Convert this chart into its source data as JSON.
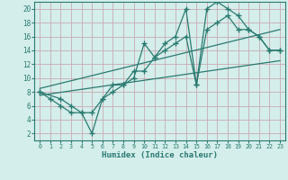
{
  "bg_color": "#d4eeeb",
  "grid_color": "#c8aab4",
  "line_color": "#2a7a70",
  "xlabel": "Humidex (Indice chaleur)",
  "xlim": [
    -0.5,
    23.5
  ],
  "ylim": [
    1,
    21
  ],
  "xticks": [
    0,
    1,
    2,
    3,
    4,
    5,
    6,
    7,
    8,
    9,
    10,
    11,
    12,
    13,
    14,
    15,
    16,
    17,
    18,
    19,
    20,
    21,
    22,
    23
  ],
  "yticks": [
    2,
    4,
    6,
    8,
    10,
    12,
    14,
    16,
    18,
    20
  ],
  "series1_x": [
    0,
    1,
    2,
    3,
    4,
    5,
    6,
    7,
    8,
    9,
    10,
    11,
    12,
    13,
    14,
    15,
    16,
    17,
    18,
    19,
    20,
    21,
    22,
    23
  ],
  "series1_y": [
    8,
    7,
    6,
    5,
    5,
    2,
    7,
    9,
    9,
    11,
    11,
    13,
    15,
    16,
    20,
    9,
    20,
    21,
    20,
    19,
    17,
    16,
    14,
    14
  ],
  "series2_x": [
    0,
    2,
    3,
    4,
    5,
    6,
    7,
    8,
    9,
    10,
    11,
    12,
    13,
    14,
    15,
    16,
    17,
    18,
    19,
    20,
    21,
    22,
    23
  ],
  "series2_y": [
    8,
    7,
    6,
    5,
    5,
    7,
    8,
    9,
    10,
    15,
    13,
    14,
    15,
    16,
    9,
    17,
    18,
    19,
    17,
    17,
    16,
    14,
    14
  ],
  "trend1_x": [
    0,
    23
  ],
  "trend1_y": [
    7.5,
    12.5
  ],
  "trend2_x": [
    0,
    23
  ],
  "trend2_y": [
    8.5,
    17.0
  ]
}
